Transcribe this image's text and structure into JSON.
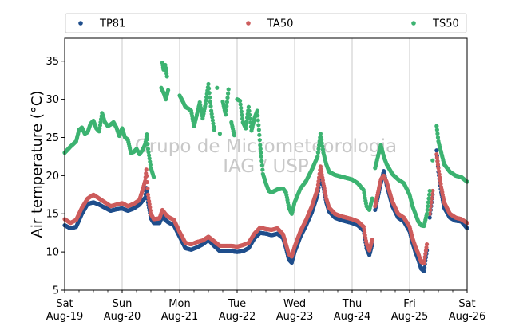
{
  "chart_data": {
    "type": "scatter",
    "ylabel": "Air temperature (°C)",
    "xlabel": "",
    "ylim": [
      5,
      38
    ],
    "yticks": [
      5,
      10,
      15,
      20,
      25,
      30,
      35
    ],
    "xlim_days": [
      0,
      7
    ],
    "x_ticks": [
      {
        "day": "Sat",
        "date": "Aug-19"
      },
      {
        "day": "Sun",
        "date": "Aug-20"
      },
      {
        "day": "Mon",
        "date": "Aug-21"
      },
      {
        "day": "Tue",
        "date": "Aug-22"
      },
      {
        "day": "Wed",
        "date": "Aug-23"
      },
      {
        "day": "Thu",
        "date": "Aug-24"
      },
      {
        "day": "Fri",
        "date": "Aug-25"
      },
      {
        "day": "Sat",
        "date": "Aug-26"
      }
    ],
    "grid": "vertical",
    "legend_position": "top",
    "watermark": [
      "Grupo de Micrometeorologia",
      "IAG / USP"
    ],
    "series": [
      {
        "name": "TP81",
        "color": "#1f4e8c",
        "points": [
          [
            0.0,
            13.5
          ],
          [
            0.1,
            13.1
          ],
          [
            0.2,
            13.3
          ],
          [
            0.3,
            15.0
          ],
          [
            0.4,
            16.3
          ],
          [
            0.5,
            16.5
          ],
          [
            0.6,
            16.2
          ],
          [
            0.7,
            15.8
          ],
          [
            0.8,
            15.4
          ],
          [
            0.9,
            15.6
          ],
          [
            1.0,
            15.7
          ],
          [
            1.1,
            15.4
          ],
          [
            1.2,
            15.7
          ],
          [
            1.3,
            16.2
          ],
          [
            1.4,
            17.1
          ],
          [
            1.42,
            18.4
          ],
          [
            1.45,
            16.5
          ],
          [
            1.5,
            14.4
          ],
          [
            1.55,
            13.8
          ],
          [
            1.65,
            13.8
          ],
          [
            1.7,
            14.7
          ],
          [
            1.75,
            14.2
          ],
          [
            1.8,
            13.9
          ],
          [
            1.9,
            13.5
          ],
          [
            2.0,
            12.0
          ],
          [
            2.1,
            10.5
          ],
          [
            2.2,
            10.3
          ],
          [
            2.3,
            10.6
          ],
          [
            2.4,
            11.0
          ],
          [
            2.5,
            11.6
          ],
          [
            2.6,
            10.8
          ],
          [
            2.7,
            10.1
          ],
          [
            2.8,
            10.1
          ],
          [
            2.9,
            10.1
          ],
          [
            3.0,
            10.0
          ],
          [
            3.1,
            10.1
          ],
          [
            3.2,
            10.5
          ],
          [
            3.3,
            11.8
          ],
          [
            3.4,
            12.5
          ],
          [
            3.5,
            12.4
          ],
          [
            3.6,
            12.2
          ],
          [
            3.7,
            12.4
          ],
          [
            3.8,
            11.8
          ],
          [
            3.85,
            10.5
          ],
          [
            3.9,
            9.0
          ],
          [
            3.95,
            8.6
          ],
          [
            4.0,
            10.0
          ],
          [
            4.1,
            12.0
          ],
          [
            4.2,
            13.5
          ],
          [
            4.3,
            15.2
          ],
          [
            4.4,
            17.5
          ],
          [
            4.45,
            20.2
          ],
          [
            4.5,
            18.5
          ],
          [
            4.55,
            16.5
          ],
          [
            4.6,
            15.3
          ],
          [
            4.7,
            14.5
          ],
          [
            4.8,
            14.2
          ],
          [
            4.9,
            14.0
          ],
          [
            5.0,
            13.8
          ],
          [
            5.1,
            13.5
          ],
          [
            5.2,
            12.8
          ],
          [
            5.25,
            10.5
          ],
          [
            5.3,
            9.6
          ],
          [
            5.35,
            11.0
          ],
          [
            5.4,
            15.5
          ],
          [
            5.5,
            19.0
          ],
          [
            5.55,
            20.6
          ],
          [
            5.6,
            18.8
          ],
          [
            5.7,
            16.0
          ],
          [
            5.8,
            14.5
          ],
          [
            5.9,
            14.0
          ],
          [
            6.0,
            12.7
          ],
          [
            6.05,
            11.2
          ],
          [
            6.1,
            10.0
          ],
          [
            6.15,
            9.0
          ],
          [
            6.2,
            7.8
          ],
          [
            6.25,
            7.5
          ],
          [
            6.3,
            10.2
          ],
          [
            6.35,
            14.5
          ],
          [
            6.4,
            17.5
          ],
          [
            6.47,
            23.3
          ],
          [
            6.5,
            20.5
          ],
          [
            6.55,
            17.8
          ],
          [
            6.6,
            15.8
          ],
          [
            6.7,
            14.5
          ],
          [
            6.8,
            14.1
          ],
          [
            6.9,
            14.0
          ],
          [
            7.0,
            13.1
          ]
        ]
      },
      {
        "name": "TA50",
        "color": "#cd5c5c",
        "points": [
          [
            0.0,
            14.3
          ],
          [
            0.1,
            13.8
          ],
          [
            0.2,
            14.2
          ],
          [
            0.3,
            15.8
          ],
          [
            0.4,
            17.0
          ],
          [
            0.5,
            17.5
          ],
          [
            0.6,
            17.0
          ],
          [
            0.7,
            16.5
          ],
          [
            0.8,
            16.0
          ],
          [
            0.9,
            16.2
          ],
          [
            1.0,
            16.4
          ],
          [
            1.1,
            16.0
          ],
          [
            1.2,
            16.3
          ],
          [
            1.3,
            16.8
          ],
          [
            1.35,
            18.0
          ],
          [
            1.4,
            19.3
          ],
          [
            1.42,
            20.8
          ],
          [
            1.45,
            17.5
          ],
          [
            1.5,
            15.0
          ],
          [
            1.55,
            14.3
          ],
          [
            1.65,
            14.4
          ],
          [
            1.7,
            15.5
          ],
          [
            1.75,
            15.0
          ],
          [
            1.8,
            14.6
          ],
          [
            1.9,
            14.2
          ],
          [
            2.0,
            12.6
          ],
          [
            2.1,
            11.2
          ],
          [
            2.2,
            11.0
          ],
          [
            2.3,
            11.3
          ],
          [
            2.4,
            11.5
          ],
          [
            2.5,
            12.0
          ],
          [
            2.6,
            11.4
          ],
          [
            2.7,
            10.8
          ],
          [
            2.8,
            10.8
          ],
          [
            2.9,
            10.8
          ],
          [
            3.0,
            10.7
          ],
          [
            3.1,
            10.9
          ],
          [
            3.2,
            11.2
          ],
          [
            3.3,
            12.4
          ],
          [
            3.4,
            13.2
          ],
          [
            3.5,
            13.0
          ],
          [
            3.6,
            12.9
          ],
          [
            3.7,
            13.1
          ],
          [
            3.8,
            12.3
          ],
          [
            3.85,
            11.0
          ],
          [
            3.9,
            9.7
          ],
          [
            3.95,
            9.4
          ],
          [
            4.0,
            10.7
          ],
          [
            4.1,
            12.7
          ],
          [
            4.2,
            14.2
          ],
          [
            4.3,
            16.0
          ],
          [
            4.4,
            18.3
          ],
          [
            4.45,
            21.2
          ],
          [
            4.5,
            19.0
          ],
          [
            4.55,
            17.0
          ],
          [
            4.6,
            15.8
          ],
          [
            4.7,
            15.0
          ],
          [
            4.8,
            14.7
          ],
          [
            4.9,
            14.5
          ],
          [
            5.0,
            14.3
          ],
          [
            5.1,
            14.0
          ],
          [
            5.2,
            13.3
          ],
          [
            5.25,
            11.1
          ],
          [
            5.3,
            10.2
          ],
          [
            5.35,
            11.6
          ],
          [
            5.4,
            16.0
          ],
          [
            5.5,
            19.5
          ],
          [
            5.55,
            20.0
          ],
          [
            5.6,
            19.2
          ],
          [
            5.7,
            16.6
          ],
          [
            5.8,
            15.0
          ],
          [
            5.9,
            14.5
          ],
          [
            6.0,
            13.3
          ],
          [
            6.05,
            11.8
          ],
          [
            6.1,
            10.7
          ],
          [
            6.15,
            9.8
          ],
          [
            6.2,
            8.7
          ],
          [
            6.25,
            8.5
          ],
          [
            6.3,
            11.0
          ],
          [
            6.35,
            15.0
          ],
          [
            6.4,
            18.0
          ],
          [
            6.47,
            22.8
          ],
          [
            6.5,
            21.0
          ],
          [
            6.55,
            18.5
          ],
          [
            6.6,
            16.5
          ],
          [
            6.7,
            15.0
          ],
          [
            6.8,
            14.5
          ],
          [
            6.9,
            14.3
          ],
          [
            7.0,
            13.8
          ]
        ]
      },
      {
        "name": "TS50",
        "color": "#3cb371",
        "points": [
          [
            0.0,
            23.0
          ],
          [
            0.1,
            23.8
          ],
          [
            0.2,
            24.5
          ],
          [
            0.25,
            26.0
          ],
          [
            0.3,
            26.3
          ],
          [
            0.35,
            25.5
          ],
          [
            0.4,
            25.7
          ],
          [
            0.45,
            26.8
          ],
          [
            0.5,
            27.2
          ],
          [
            0.55,
            26.2
          ],
          [
            0.6,
            25.8
          ],
          [
            0.65,
            28.2
          ],
          [
            0.7,
            27.0
          ],
          [
            0.75,
            26.5
          ],
          [
            0.8,
            26.7
          ],
          [
            0.85,
            27.0
          ],
          [
            0.9,
            26.3
          ],
          [
            0.95,
            25.2
          ],
          [
            1.0,
            26.2
          ],
          [
            1.05,
            25.0
          ],
          [
            1.1,
            24.7
          ],
          [
            1.15,
            23.0
          ],
          [
            1.2,
            23.1
          ],
          [
            1.25,
            23.5
          ],
          [
            1.3,
            22.8
          ],
          [
            1.35,
            23.3
          ],
          [
            1.4,
            24.1
          ],
          [
            1.43,
            25.4
          ],
          [
            1.45,
            23.5
          ],
          [
            1.5,
            21.0
          ],
          [
            1.55,
            19.8
          ],
          [
            1.7,
            34.8
          ],
          [
            1.72,
            33.9
          ],
          [
            1.75,
            34.5
          ],
          [
            1.78,
            33.0
          ],
          [
            1.68,
            31.5
          ],
          [
            1.73,
            30.7
          ],
          [
            1.76,
            30.0
          ],
          [
            1.8,
            31.2
          ],
          [
            2.0,
            30.5
          ],
          [
            2.05,
            29.8
          ],
          [
            2.1,
            29.0
          ],
          [
            2.15,
            28.8
          ],
          [
            2.2,
            28.5
          ],
          [
            2.25,
            26.5
          ],
          [
            2.3,
            28.0
          ],
          [
            2.35,
            29.6
          ],
          [
            2.4,
            27.5
          ],
          [
            2.45,
            29.4
          ],
          [
            2.5,
            32.0
          ],
          [
            2.55,
            28.5
          ],
          [
            2.6,
            26.0
          ],
          [
            2.65,
            31.5
          ],
          [
            2.7,
            25.5
          ],
          [
            2.75,
            29.7
          ],
          [
            2.8,
            28.0
          ],
          [
            2.85,
            31.3
          ],
          [
            2.9,
            27.0
          ],
          [
            2.95,
            25.3
          ],
          [
            3.0,
            30.0
          ],
          [
            3.05,
            29.8
          ],
          [
            3.1,
            27.0
          ],
          [
            3.15,
            26.2
          ],
          [
            3.2,
            29.0
          ],
          [
            3.25,
            25.9
          ],
          [
            3.3,
            27.5
          ],
          [
            3.35,
            28.5
          ],
          [
            3.38,
            26.0
          ],
          [
            3.4,
            24.0
          ],
          [
            3.42,
            22.5
          ],
          [
            3.45,
            20.2
          ],
          [
            3.5,
            19.0
          ],
          [
            3.55,
            18.0
          ],
          [
            3.6,
            17.8
          ],
          [
            3.7,
            18.2
          ],
          [
            3.8,
            18.3
          ],
          [
            3.85,
            17.8
          ],
          [
            3.9,
            15.8
          ],
          [
            3.95,
            15.0
          ],
          [
            4.0,
            16.5
          ],
          [
            4.1,
            18.3
          ],
          [
            4.2,
            19.3
          ],
          [
            4.3,
            20.8
          ],
          [
            4.4,
            22.5
          ],
          [
            4.45,
            25.5
          ],
          [
            4.5,
            23.0
          ],
          [
            4.55,
            21.5
          ],
          [
            4.6,
            20.5
          ],
          [
            4.7,
            20.1
          ],
          [
            4.8,
            19.9
          ],
          [
            4.9,
            19.7
          ],
          [
            5.0,
            19.5
          ],
          [
            5.1,
            19.0
          ],
          [
            5.2,
            18.1
          ],
          [
            5.25,
            16.0
          ],
          [
            5.3,
            15.5
          ],
          [
            5.35,
            17.0
          ],
          [
            5.4,
            21.0
          ],
          [
            5.5,
            24.0
          ],
          [
            5.55,
            22.5
          ],
          [
            5.6,
            21.5
          ],
          [
            5.7,
            20.2
          ],
          [
            5.8,
            19.5
          ],
          [
            5.9,
            19.0
          ],
          [
            6.0,
            17.5
          ],
          [
            6.05,
            16.0
          ],
          [
            6.1,
            15.0
          ],
          [
            6.15,
            14.0
          ],
          [
            6.2,
            13.5
          ],
          [
            6.25,
            13.4
          ],
          [
            6.3,
            15.0
          ],
          [
            6.35,
            18.0
          ],
          [
            6.4,
            22.0
          ],
          [
            6.47,
            26.5
          ],
          [
            6.5,
            24.5
          ],
          [
            6.55,
            23.0
          ],
          [
            6.6,
            21.5
          ],
          [
            6.7,
            20.5
          ],
          [
            6.8,
            20.0
          ],
          [
            6.9,
            19.8
          ],
          [
            7.0,
            19.2
          ]
        ]
      }
    ]
  }
}
